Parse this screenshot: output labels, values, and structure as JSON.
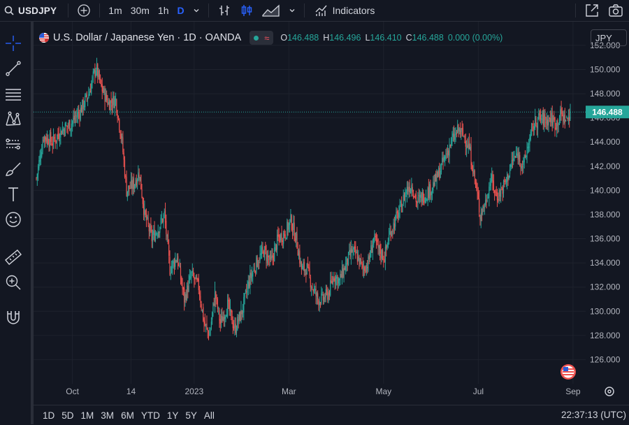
{
  "toolbar": {
    "symbol": "USDJPY",
    "intervals": [
      "1m",
      "30m",
      "1h",
      "D"
    ],
    "active_interval": "D",
    "indicators_label": "Indicators"
  },
  "legend": {
    "title": "U.S. Dollar / Japanese Yen · 1D · OANDA",
    "o_label": "O",
    "o": "146.488",
    "h_label": "H",
    "h": "146.496",
    "l_label": "L",
    "l": "146.410",
    "c_label": "C",
    "c": "146.488",
    "change": "0.000 (0.00%)"
  },
  "currency_button": "JPY",
  "bottom": {
    "ranges": [
      "1D",
      "5D",
      "1M",
      "3M",
      "6M",
      "YTD",
      "1Y",
      "5Y",
      "All"
    ],
    "clock": "22:37:13 (UTC)"
  },
  "colors": {
    "up": "#26a69a",
    "down": "#ef5350",
    "background": "#131722",
    "grid": "#1e222d"
  },
  "chart_data": {
    "type": "candlestick",
    "title": "U.S. Dollar / Japanese Yen · 1D · OANDA",
    "ylim": [
      124.0,
      153.5
    ],
    "y_ticks": [
      "152.000",
      "150.000",
      "148.000",
      "146.000",
      "144.000",
      "142.000",
      "140.000",
      "138.000",
      "136.000",
      "134.000",
      "132.000",
      "130.000",
      "128.000",
      "126.000"
    ],
    "x_ticks": [
      "Oct",
      "14",
      "2023",
      "Mar",
      "May",
      "Jul",
      "Sep"
    ],
    "x_tick_index": [
      40,
      105,
      175,
      280,
      385,
      490,
      595
    ],
    "last_price": "146.488",
    "last_price_value": 146.488,
    "close_path": [
      [
        0,
        141.0
      ],
      [
        8,
        144.5
      ],
      [
        18,
        144.0
      ],
      [
        28,
        145.0
      ],
      [
        38,
        145.5
      ],
      [
        48,
        146.5
      ],
      [
        58,
        148.0
      ],
      [
        66,
        150.2
      ],
      [
        72,
        148.5
      ],
      [
        80,
        147.2
      ],
      [
        88,
        147.5
      ],
      [
        95,
        144.0
      ],
      [
        100,
        140.0
      ],
      [
        108,
        140.5
      ],
      [
        114,
        141.5
      ],
      [
        120,
        138.0
      ],
      [
        128,
        136.0
      ],
      [
        136,
        137.0
      ],
      [
        142,
        138.0
      ],
      [
        148,
        133.5
      ],
      [
        156,
        134.5
      ],
      [
        164,
        131.0
      ],
      [
        172,
        133.0
      ],
      [
        180,
        132.0
      ],
      [
        186,
        129.0
      ],
      [
        192,
        128.0
      ],
      [
        198,
        131.5
      ],
      [
        204,
        129.0
      ],
      [
        212,
        130.5
      ],
      [
        220,
        128.5
      ],
      [
        228,
        130.0
      ],
      [
        236,
        132.5
      ],
      [
        244,
        134.0
      ],
      [
        252,
        135.0
      ],
      [
        260,
        134.0
      ],
      [
        268,
        136.0
      ],
      [
        276,
        136.5
      ],
      [
        282,
        137.5
      ],
      [
        288,
        136.0
      ],
      [
        294,
        133.5
      ],
      [
        300,
        133.5
      ],
      [
        306,
        132.0
      ],
      [
        312,
        131.0
      ],
      [
        318,
        131.0
      ],
      [
        324,
        131.5
      ],
      [
        330,
        133.0
      ],
      [
        336,
        132.5
      ],
      [
        344,
        134.0
      ],
      [
        350,
        135.0
      ],
      [
        356,
        134.5
      ],
      [
        362,
        133.5
      ],
      [
        368,
        134.0
      ],
      [
        374,
        136.0
      ],
      [
        380,
        135.0
      ],
      [
        386,
        134.5
      ],
      [
        392,
        136.5
      ],
      [
        398,
        137.5
      ],
      [
        404,
        138.5
      ],
      [
        410,
        140.0
      ],
      [
        416,
        140.5
      ],
      [
        422,
        139.0
      ],
      [
        428,
        139.5
      ],
      [
        436,
        140.0
      ],
      [
        444,
        141.0
      ],
      [
        452,
        142.5
      ],
      [
        460,
        144.0
      ],
      [
        468,
        145.0
      ],
      [
        474,
        144.5
      ],
      [
        480,
        143.5
      ],
      [
        486,
        141.0
      ],
      [
        492,
        138.0
      ],
      [
        498,
        139.0
      ],
      [
        504,
        141.0
      ],
      [
        510,
        139.5
      ],
      [
        516,
        140.0
      ],
      [
        522,
        141.0
      ],
      [
        528,
        142.5
      ],
      [
        534,
        143.0
      ],
      [
        540,
        142.0
      ],
      [
        546,
        144.0
      ],
      [
        552,
        145.5
      ],
      [
        558,
        146.0
      ],
      [
        564,
        145.8
      ],
      [
        570,
        146.0
      ],
      [
        576,
        145.5
      ],
      [
        582,
        146.3
      ],
      [
        588,
        145.8
      ],
      [
        592,
        146.49
      ]
    ]
  }
}
